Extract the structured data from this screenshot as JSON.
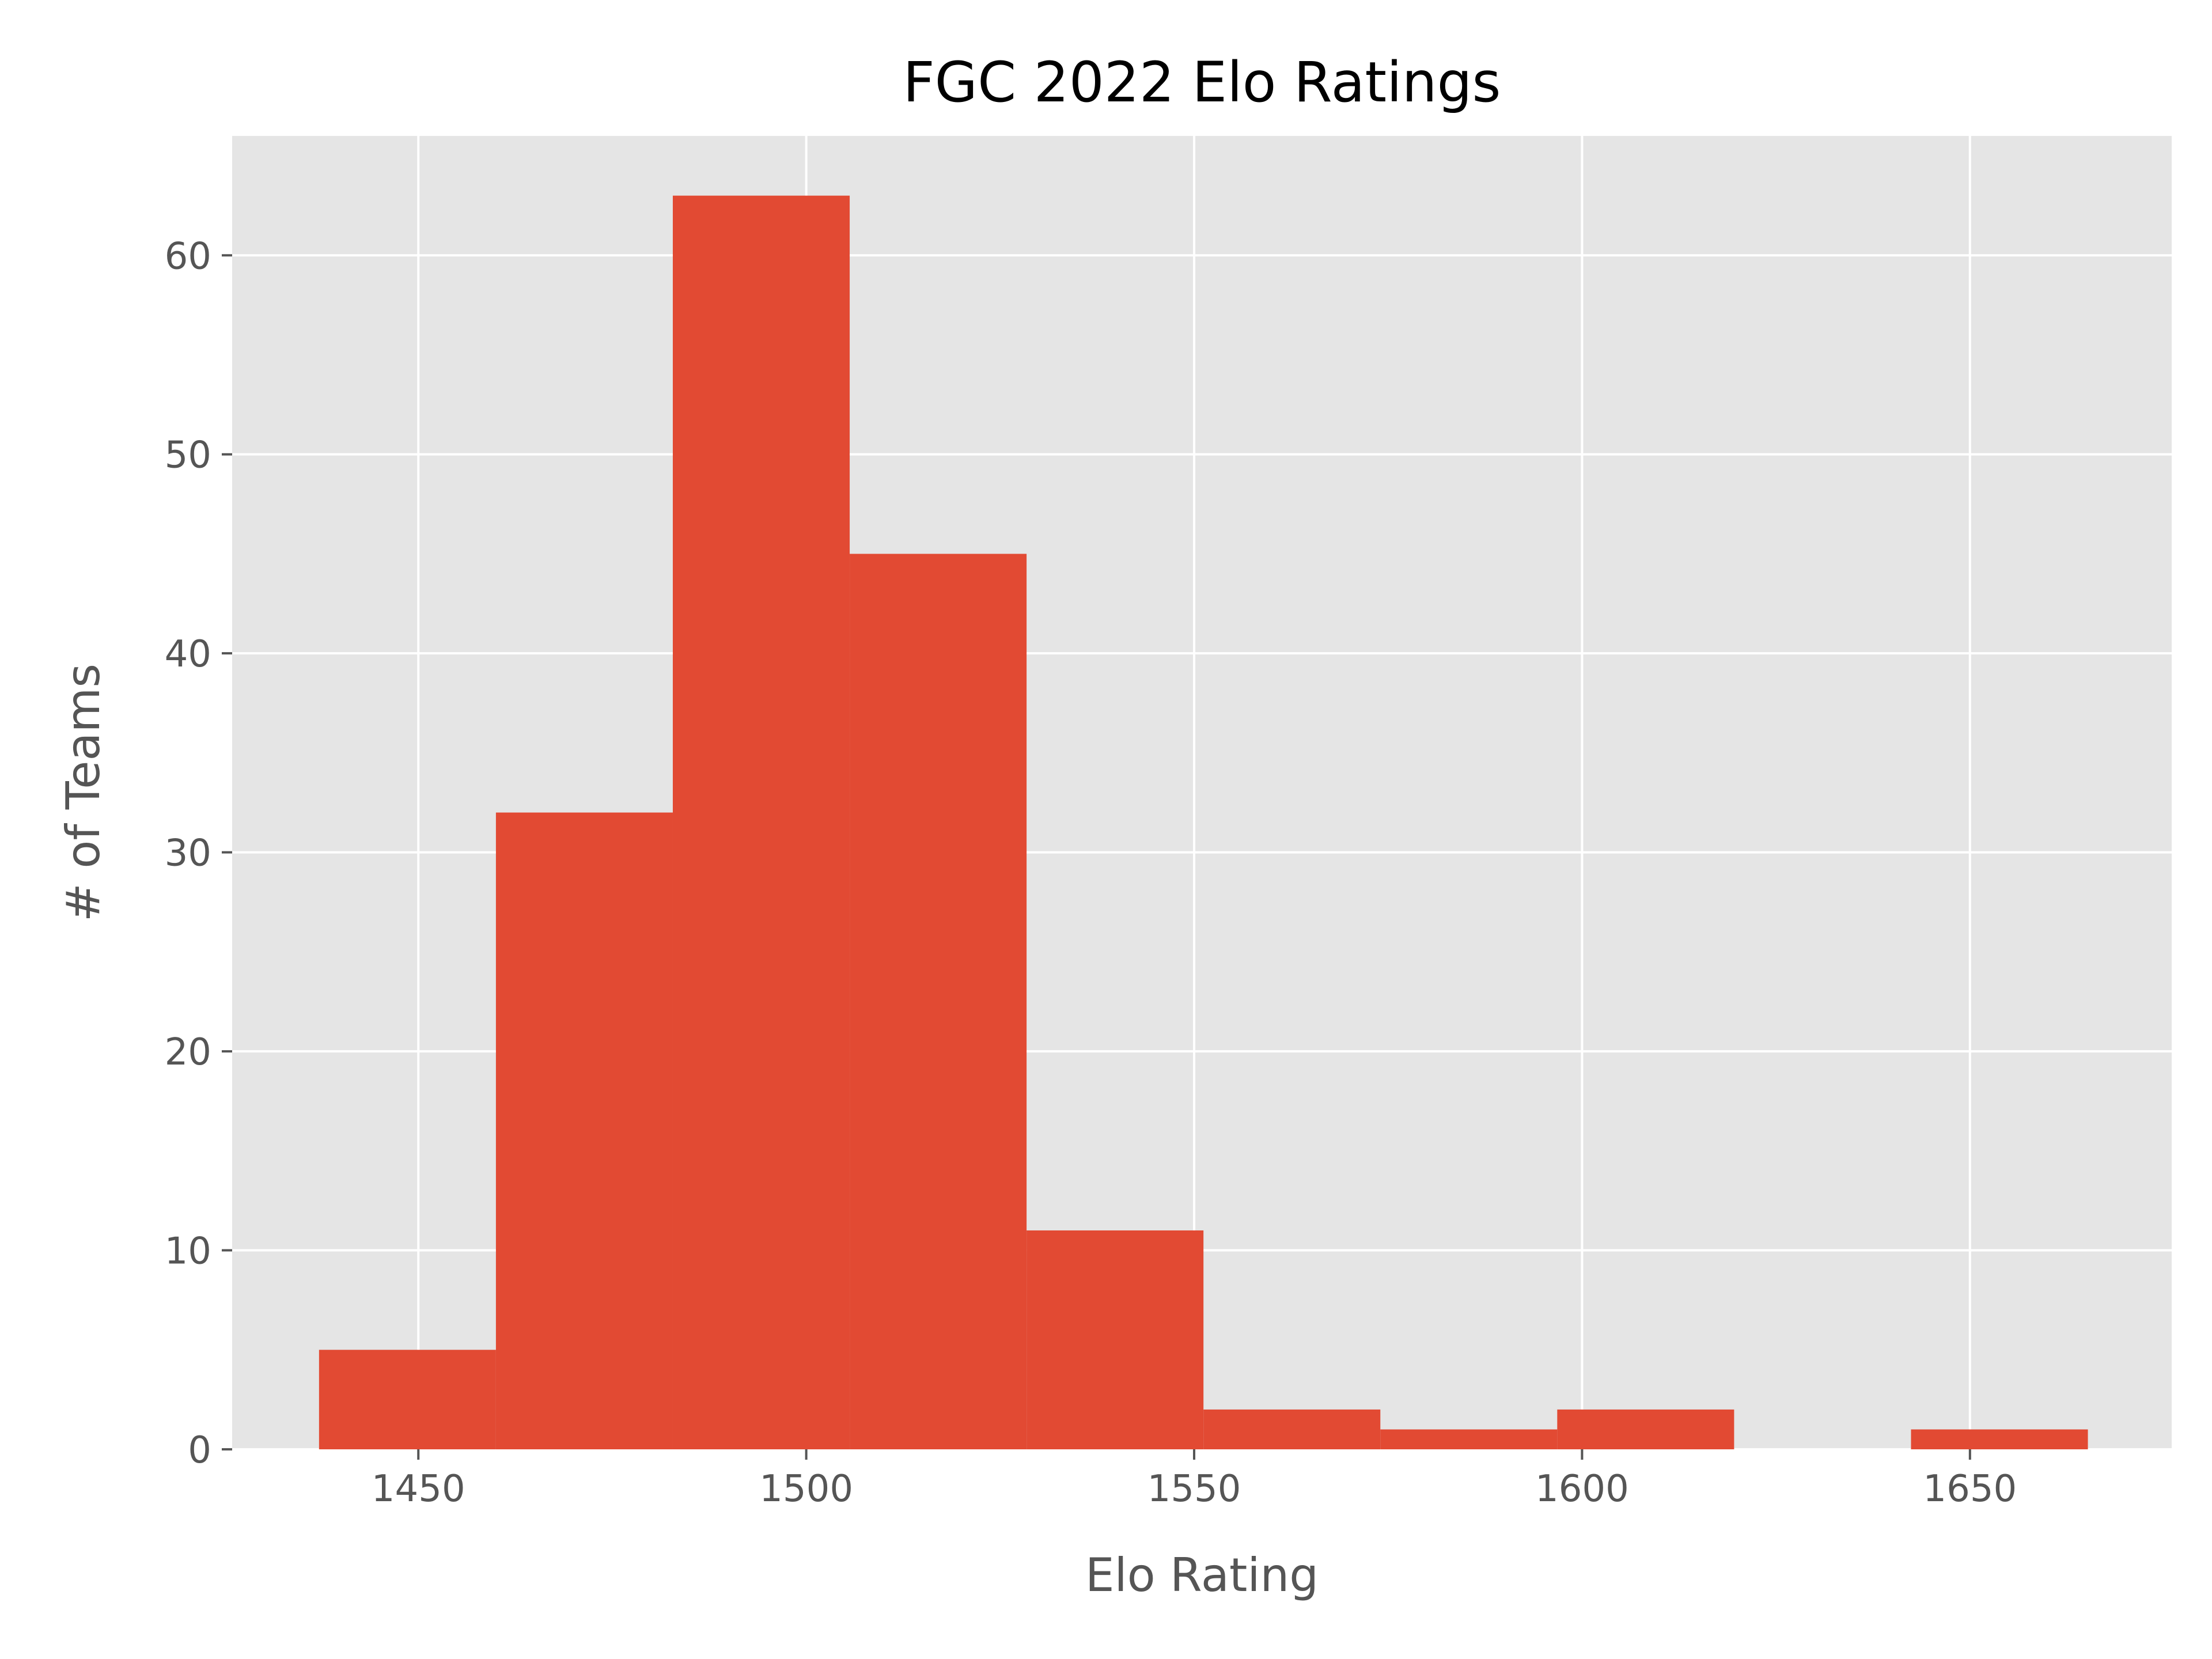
{
  "chart_data": {
    "type": "bar",
    "title": "FGC 2022 Elo Ratings",
    "xlabel": "Elo Rating",
    "ylabel": "# of Teams",
    "xlim": [
      1426,
      1676
    ],
    "ylim": [
      0,
      66
    ],
    "xticks": [
      1450,
      1500,
      1550,
      1600,
      1650
    ],
    "yticks": [
      0,
      10,
      20,
      30,
      40,
      50,
      60
    ],
    "grid": true,
    "bar_color": "#E24A33",
    "background_color": "#E5E5E5",
    "bins": [
      {
        "x0": 1437.2,
        "x1": 1460.0,
        "count": 5
      },
      {
        "x0": 1460.0,
        "x1": 1482.8,
        "count": 32
      },
      {
        "x0": 1482.8,
        "x1": 1505.6,
        "count": 63
      },
      {
        "x0": 1505.6,
        "x1": 1528.4,
        "count": 45
      },
      {
        "x0": 1528.4,
        "x1": 1551.2,
        "count": 11
      },
      {
        "x0": 1551.2,
        "x1": 1574.0,
        "count": 2
      },
      {
        "x0": 1574.0,
        "x1": 1596.8,
        "count": 1
      },
      {
        "x0": 1596.8,
        "x1": 1619.6,
        "count": 2
      },
      {
        "x0": 1619.6,
        "x1": 1642.4,
        "count": 0
      },
      {
        "x0": 1642.4,
        "x1": 1665.2,
        "count": 1
      }
    ]
  }
}
